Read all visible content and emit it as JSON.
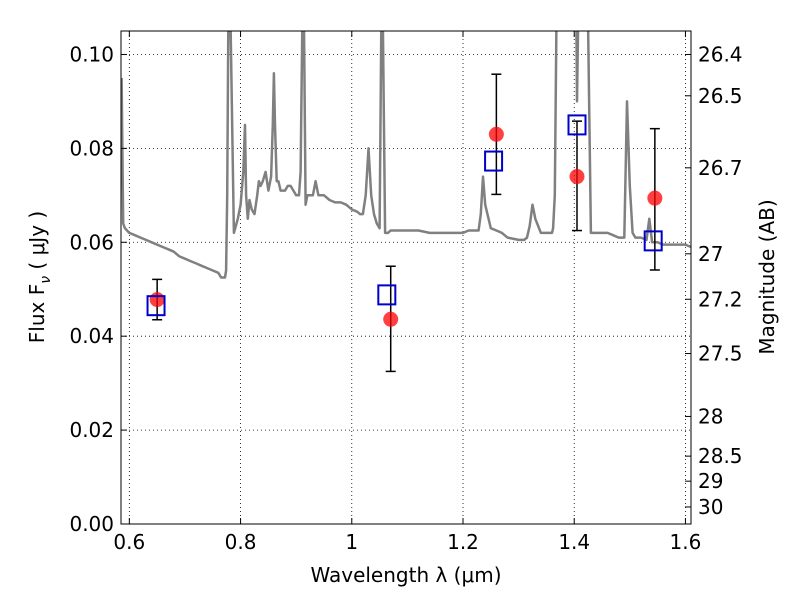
{
  "chart_data": {
    "type": "scatter",
    "xlabel": "Wavelength  λ (μm)",
    "ylabel": "Flux  F",
    "ylabel_sub": "ν",
    "ylabel_unit": " ( μJy )",
    "y2label": "Magnitude (AB)",
    "xlim": [
      0.585,
      1.61
    ],
    "ylim": [
      0.0,
      0.105
    ],
    "grid": true,
    "x_ticks": [
      0.6,
      0.8,
      1.0,
      1.2,
      1.4,
      1.6
    ],
    "x_tick_labels": [
      "0.6",
      "0.8",
      "1",
      "1.2",
      "1.4",
      "1.6"
    ],
    "y_ticks": [
      0.0,
      0.02,
      0.04,
      0.06,
      0.08,
      0.1
    ],
    "y_tick_labels": [
      "0.00",
      "0.02",
      "0.04",
      "0.06",
      "0.08",
      "0.10"
    ],
    "y2_ticks": [
      26.4,
      26.5,
      26.7,
      27,
      27.2,
      27.5,
      28,
      28.5,
      29,
      30
    ],
    "y2_tick_labels": [
      "26.4",
      "26.5",
      "26.7",
      "27",
      "27.2",
      "27.5",
      "28",
      "28.5",
      "29",
      "30"
    ],
    "series": [
      {
        "style": "line",
        "color": "#808080",
        "x": [
          0.586,
          0.589,
          0.592,
          0.6,
          0.61,
          0.62,
          0.63,
          0.64,
          0.65,
          0.66,
          0.67,
          0.68,
          0.69,
          0.7,
          0.71,
          0.72,
          0.73,
          0.74,
          0.75,
          0.76,
          0.765,
          0.772,
          0.774,
          0.776,
          0.778,
          0.782,
          0.788,
          0.795,
          0.8,
          0.805,
          0.808,
          0.81,
          0.813,
          0.816,
          0.82,
          0.825,
          0.83,
          0.833,
          0.836,
          0.84,
          0.845,
          0.85,
          0.855,
          0.858,
          0.86,
          0.862,
          0.865,
          0.868,
          0.872,
          0.876,
          0.88,
          0.885,
          0.89,
          0.895,
          0.9,
          0.905,
          0.908,
          0.911,
          0.914,
          0.917,
          0.92,
          0.93,
          0.935,
          0.94,
          0.95,
          0.96,
          0.97,
          0.98,
          0.99,
          1.0,
          1.01,
          1.015,
          1.02,
          1.025,
          1.03,
          1.035,
          1.04,
          1.045,
          1.05,
          1.053,
          1.056,
          1.06,
          1.065,
          1.07,
          1.08,
          1.1,
          1.12,
          1.14,
          1.16,
          1.18,
          1.2,
          1.21,
          1.22,
          1.228,
          1.232,
          1.236,
          1.24,
          1.25,
          1.26,
          1.27,
          1.28,
          1.3,
          1.31,
          1.315,
          1.32,
          1.325,
          1.33,
          1.34,
          1.35,
          1.36,
          1.362,
          1.365,
          1.368,
          1.37,
          1.38,
          1.395,
          1.4,
          1.403,
          1.404,
          1.405,
          1.407,
          1.41,
          1.415,
          1.42,
          1.425,
          1.43,
          1.435,
          1.44,
          1.45,
          1.46,
          1.47,
          1.48,
          1.49,
          1.495,
          1.5,
          1.505,
          1.51,
          1.52,
          1.53,
          1.535,
          1.54,
          1.545,
          1.55,
          1.56,
          1.57,
          1.58,
          1.59,
          1.6,
          1.61
        ],
        "y": [
          0.095,
          0.064,
          0.063,
          0.062,
          0.0615,
          0.061,
          0.0605,
          0.06,
          0.0595,
          0.059,
          0.0585,
          0.058,
          0.057,
          0.0565,
          0.056,
          0.0555,
          0.055,
          0.0545,
          0.054,
          0.0535,
          0.0525,
          0.0525,
          0.054,
          0.07,
          0.106,
          0.106,
          0.062,
          0.065,
          0.068,
          0.075,
          0.085,
          0.07,
          0.065,
          0.069,
          0.067,
          0.066,
          0.07,
          0.073,
          0.072,
          0.073,
          0.075,
          0.071,
          0.074,
          0.085,
          0.096,
          0.085,
          0.073,
          0.073,
          0.071,
          0.071,
          0.071,
          0.072,
          0.072,
          0.071,
          0.07,
          0.07,
          0.075,
          0.106,
          0.106,
          0.068,
          0.07,
          0.07,
          0.073,
          0.07,
          0.07,
          0.069,
          0.0685,
          0.0685,
          0.068,
          0.067,
          0.0665,
          0.066,
          0.066,
          0.07,
          0.08,
          0.07,
          0.066,
          0.064,
          0.063,
          0.106,
          0.106,
          0.062,
          0.062,
          0.0625,
          0.0625,
          0.0625,
          0.0625,
          0.062,
          0.062,
          0.062,
          0.062,
          0.0625,
          0.0625,
          0.0625,
          0.066,
          0.074,
          0.068,
          0.063,
          0.0625,
          0.062,
          0.061,
          0.0605,
          0.0605,
          0.061,
          0.0635,
          0.068,
          0.065,
          0.062,
          0.062,
          0.062,
          0.063,
          0.07,
          0.106,
          0.106,
          0.106,
          0.106,
          0.106,
          0.106,
          0.106,
          0.09,
          0.106,
          0.106,
          0.106,
          0.106,
          0.106,
          0.062,
          0.062,
          0.062,
          0.062,
          0.062,
          0.0615,
          0.061,
          0.061,
          0.09,
          0.072,
          0.062,
          0.061,
          0.061,
          0.0605,
          0.065,
          0.06,
          0.06,
          0.06,
          0.0595,
          0.0595,
          0.0595,
          0.0595,
          0.0595,
          0.059
        ]
      },
      {
        "style": "errorbar-circle",
        "color": "#ff0000",
        "x": [
          0.65,
          1.07,
          1.26,
          1.405,
          1.545
        ],
        "y": [
          0.0478,
          0.0436,
          0.083,
          0.074,
          0.0694
        ],
        "yerr_low": [
          0.0043,
          0.0111,
          0.0128,
          0.0115,
          0.0153
        ],
        "yerr_high": [
          0.0043,
          0.0113,
          0.0128,
          0.0118,
          0.0148
        ]
      },
      {
        "style": "open-square",
        "color": "#0000cc",
        "x": [
          0.648,
          1.063,
          1.255,
          1.405,
          1.542
        ],
        "y": [
          0.0465,
          0.0488,
          0.0773,
          0.085,
          0.0603
        ]
      }
    ]
  }
}
